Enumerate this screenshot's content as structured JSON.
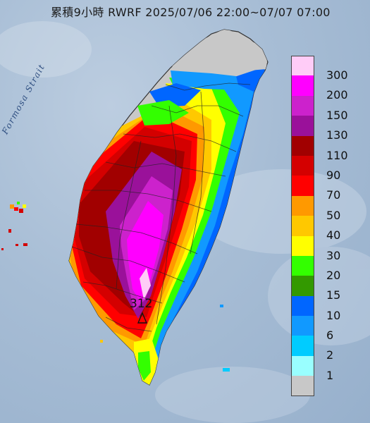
{
  "title": "累積9小時 RWRF 2025/07/06 22:00~07/07 07:00",
  "strait_label": "Formosa Strait",
  "max_value_label": "312",
  "legend": [
    {
      "label": "300",
      "color": "#ffccf7"
    },
    {
      "label": "200",
      "color": "#ff00ff"
    },
    {
      "label": "150",
      "color": "#cc22cc"
    },
    {
      "label": "130",
      "color": "#9a119a"
    },
    {
      "label": "110",
      "color": "#a10000"
    },
    {
      "label": "90",
      "color": "#d40000"
    },
    {
      "label": "70",
      "color": "#ff0000"
    },
    {
      "label": "50",
      "color": "#ff9900"
    },
    {
      "label": "40",
      "color": "#ffc800"
    },
    {
      "label": "30",
      "color": "#ffff00"
    },
    {
      "label": "20",
      "color": "#33ff00"
    },
    {
      "label": "15",
      "color": "#339900"
    },
    {
      "label": "10",
      "color": "#0066ff"
    },
    {
      "label": "6",
      "color": "#1199ff"
    },
    {
      "label": "2",
      "color": "#00ccff"
    },
    {
      "label": "1",
      "color": "#99ffff"
    },
    {
      "label": "",
      "color": "#c8c8c8"
    }
  ]
}
